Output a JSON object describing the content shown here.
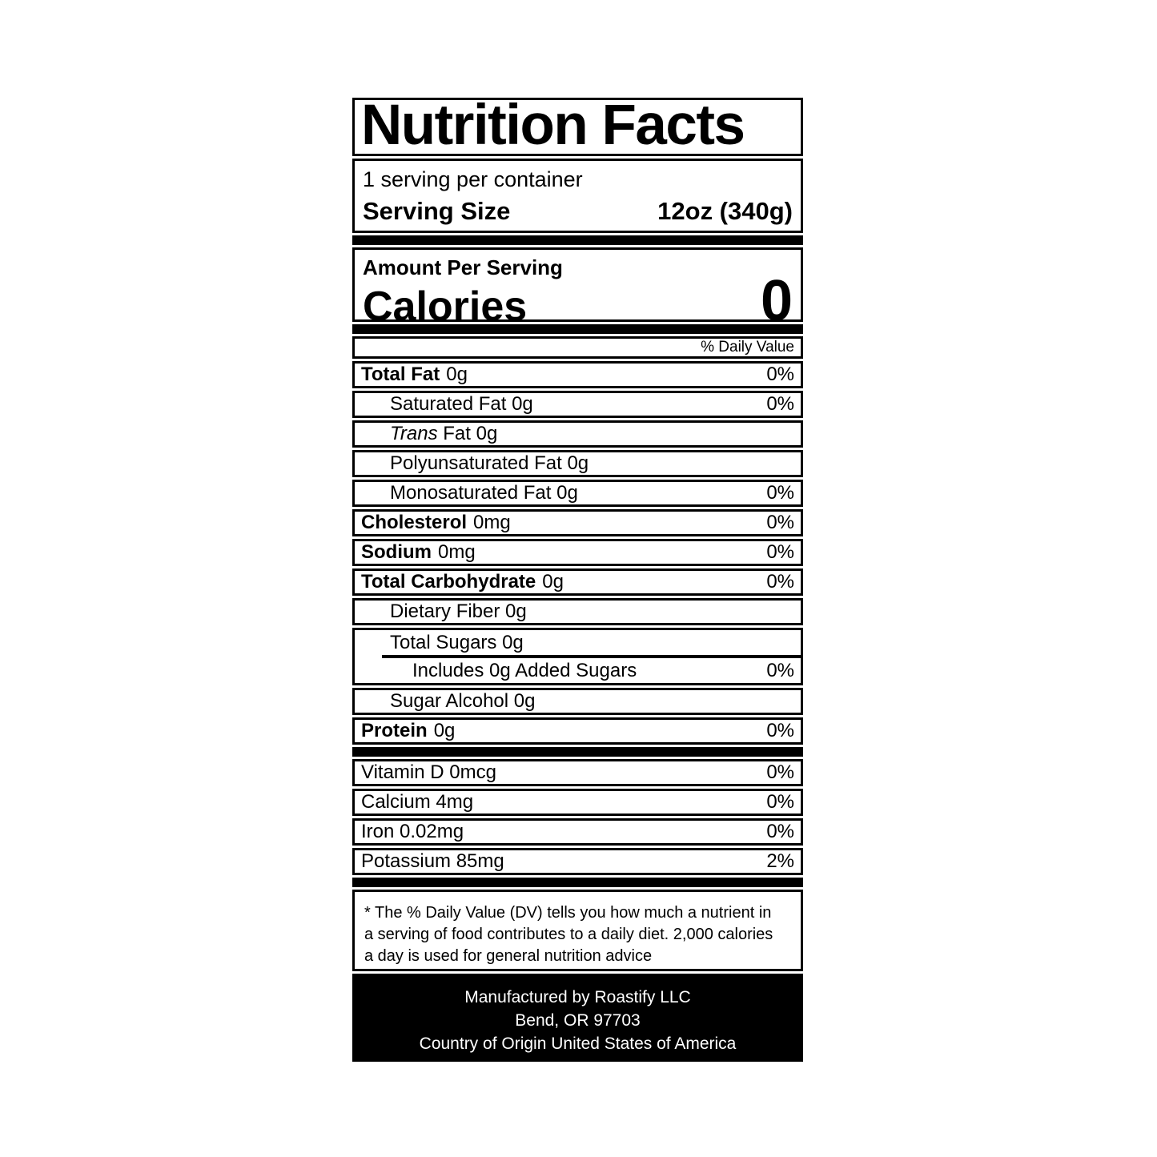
{
  "colors": {
    "ink": "#000000",
    "paper": "#ffffff",
    "footer_bg": "#000000",
    "footer_text": "#ffffff"
  },
  "label": {
    "title": "Nutrition Facts",
    "servings_per_container": "1 serving per container",
    "serving_size": {
      "label": "Serving Size",
      "value": "12oz (340g)"
    },
    "amount_per_serving": "Amount Per Serving",
    "calories": {
      "label": "Calories",
      "value": "0"
    },
    "daily_value_header": "% Daily Value",
    "rows": {
      "total_fat": {
        "bold": "Total Fat",
        "text": "0g",
        "pct": "0%"
      },
      "saturated_fat": {
        "text": "Saturated Fat 0g",
        "pct": "0%"
      },
      "trans_fat": {
        "italic": "Trans",
        "text": " Fat 0g"
      },
      "polyunsaturated_fat": {
        "text": "Polyunsaturated Fat 0g"
      },
      "monosaturated_fat": {
        "text": "Monosaturated Fat 0g",
        "pct": "0%"
      },
      "cholesterol": {
        "bold": "Cholesterol",
        "text": "0mg",
        "pct": "0%"
      },
      "sodium": {
        "bold": "Sodium",
        "text": "0mg",
        "pct": "0%"
      },
      "total_carbohydrate": {
        "bold": "Total Carbohydrate",
        "text": "0g",
        "pct": "0%"
      },
      "dietary_fiber": {
        "text": "Dietary Fiber 0g"
      },
      "total_sugars": {
        "text": "Total Sugars 0g"
      },
      "added_sugars": {
        "text": "Includes 0g Added Sugars",
        "pct": "0%"
      },
      "sugar_alcohol": {
        "text": "Sugar Alcohol 0g"
      },
      "protein": {
        "bold": "Protein",
        "text": "0g",
        "pct": "0%"
      },
      "vitamin_d": {
        "text": "Vitamin D 0mcg",
        "pct": "0%"
      },
      "calcium": {
        "text": "Calcium 4mg",
        "pct": "0%"
      },
      "iron": {
        "text": "Iron 0.02mg",
        "pct": "0%"
      },
      "potassium": {
        "text": "Potassium 85mg",
        "pct": "2%"
      }
    },
    "footnote_lines": [
      "* The % Daily Value (DV) tells you how much a nutrient in",
      "a serving of food contributes to a daily diet. 2,000 calories",
      "a day is used for general nutrition advice"
    ],
    "footer_lines": [
      "Manufactured by Roastify LLC",
      "Bend, OR 97703",
      "Country of Origin United States of America"
    ]
  }
}
